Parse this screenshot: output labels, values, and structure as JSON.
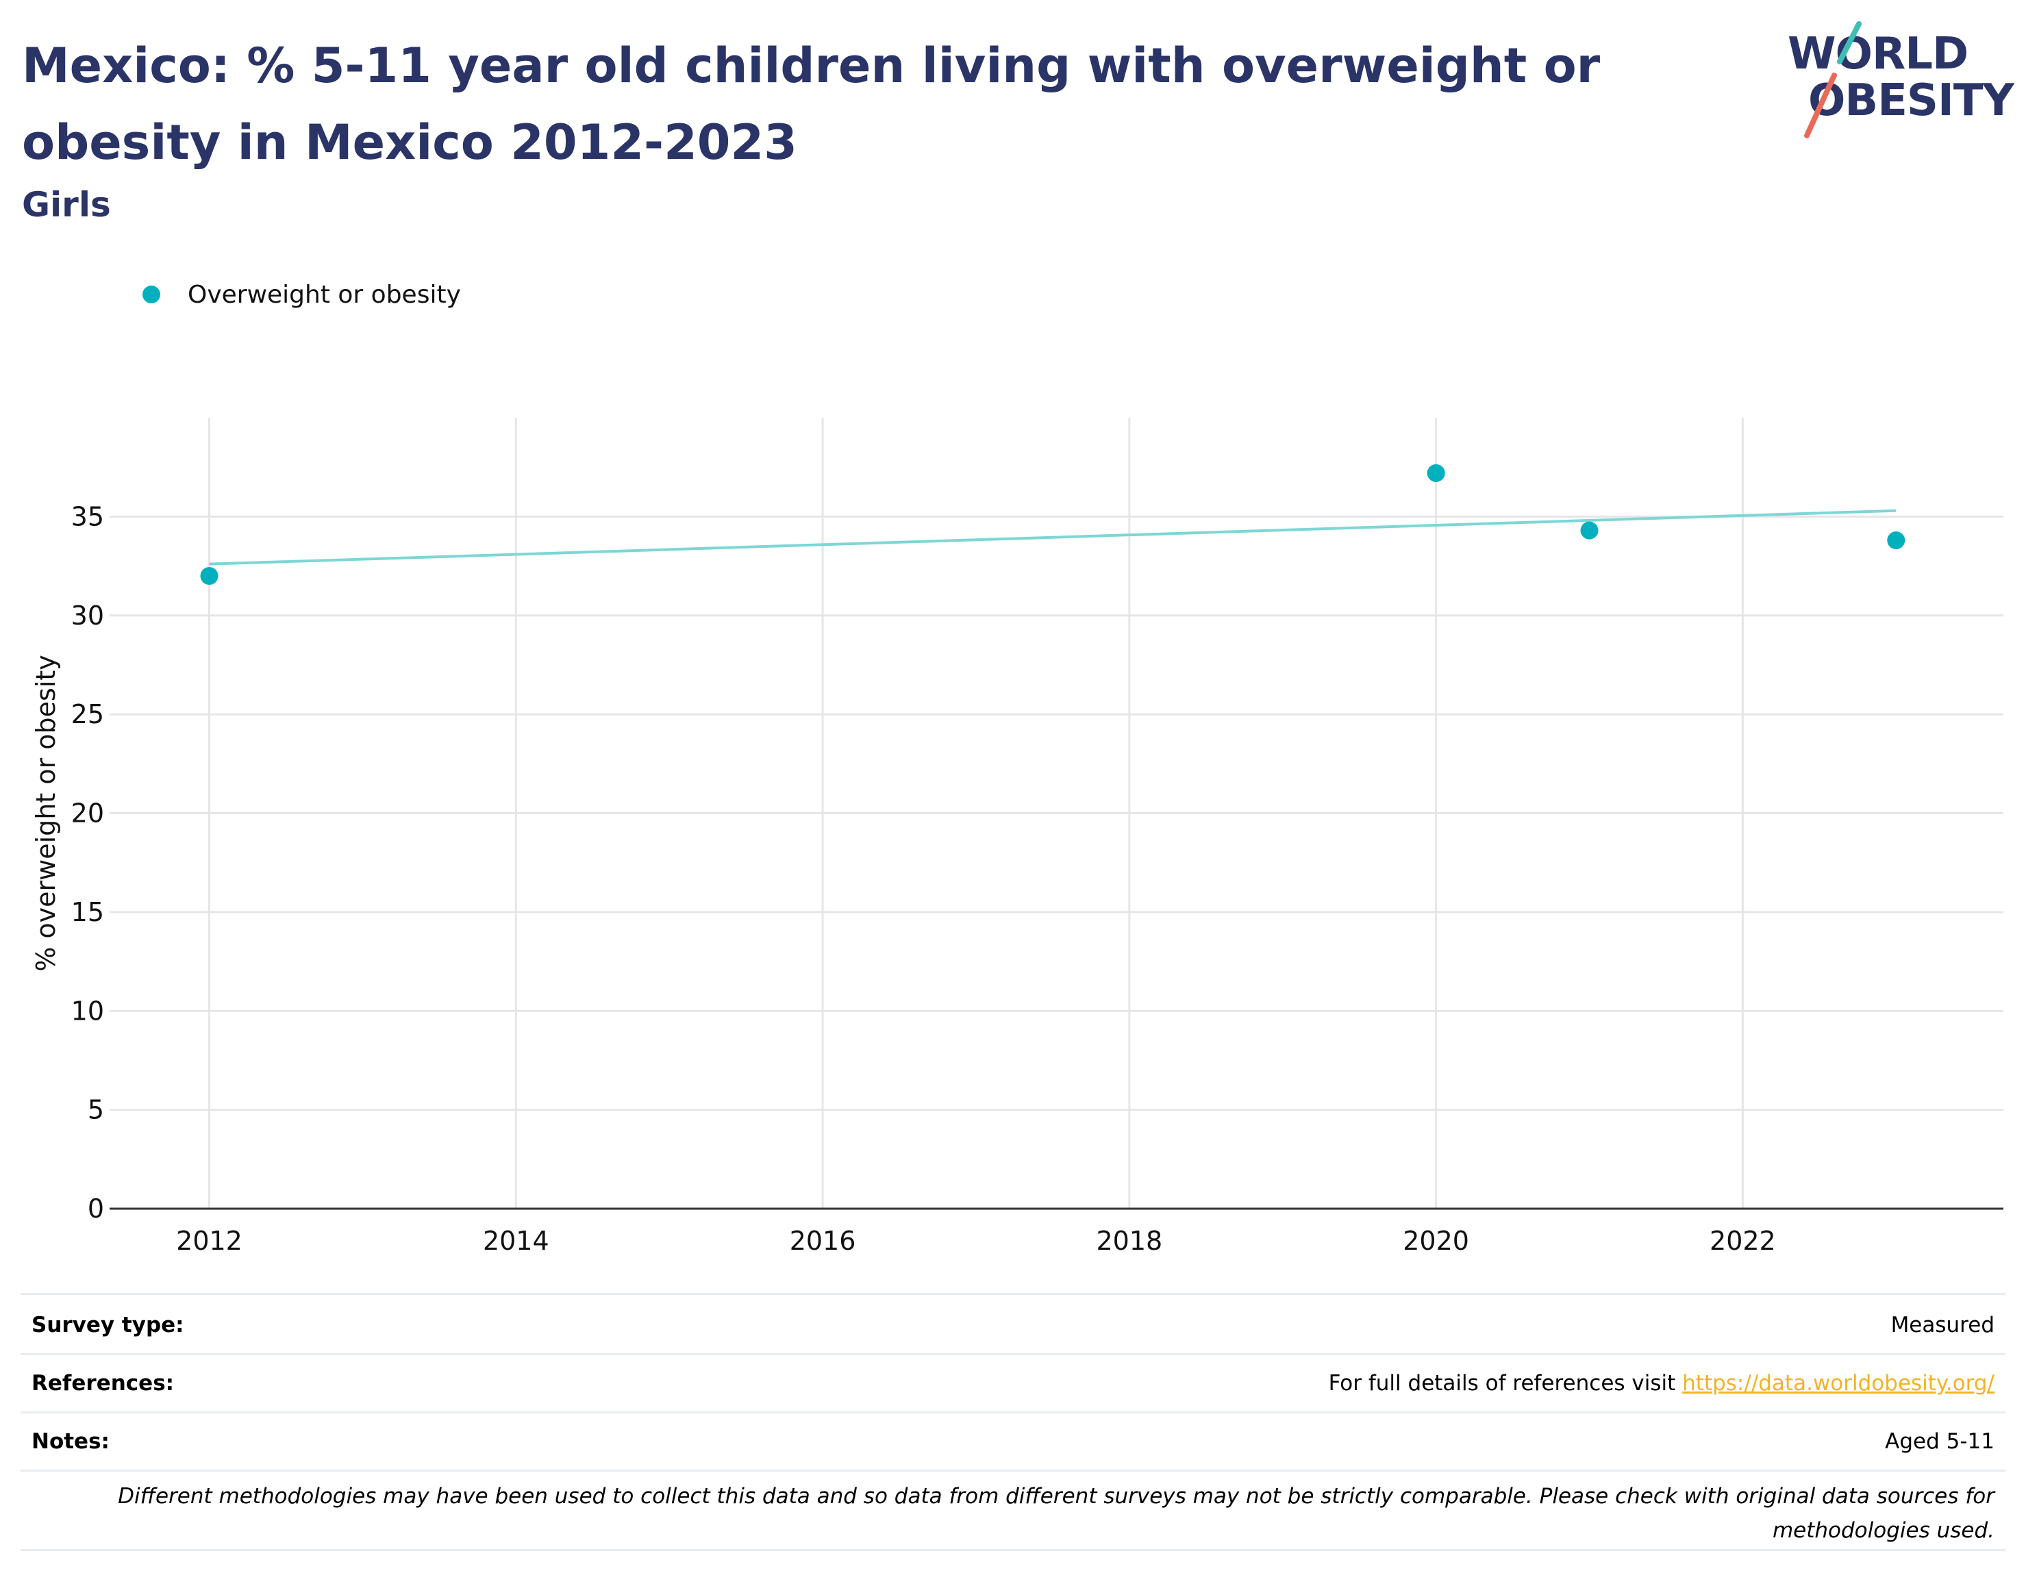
{
  "header": {
    "title": "Mexico: % 5-11 year old children living with overweight or obesity in Mexico 2012-2023",
    "subtitle": "Girls"
  },
  "logo": {
    "line1": "WORLD",
    "line2": "OBESITY",
    "accent_teal": "#3ebeb4",
    "accent_coral": "#ea6a5a"
  },
  "colors": {
    "title": "#2b3467",
    "series": "#00b0bd",
    "trend": "#7dd6d6",
    "grid": "#e6e6ea",
    "link": "#f2b324"
  },
  "chart_data": {
    "type": "scatter",
    "title": "Mexico: % 5-11 year old children living with overweight or obesity in Mexico 2012-2023",
    "subtitle": "Girls",
    "xlabel": "",
    "ylabel": "% overweight or obesity",
    "xlim": [
      2011.35,
      2023.7
    ],
    "ylim": [
      0,
      40
    ],
    "x_ticks": [
      2012,
      2014,
      2016,
      2018,
      2020,
      2022
    ],
    "y_ticks": [
      0,
      5,
      10,
      15,
      20,
      25,
      30,
      35
    ],
    "grid": true,
    "legend_position": "top-left",
    "series": [
      {
        "name": "Overweight or obesity",
        "x": [
          2012,
          2020,
          2021,
          2023
        ],
        "y": [
          32.0,
          37.2,
          34.3,
          33.8
        ]
      }
    ],
    "trendline": {
      "x": [
        2012,
        2023
      ],
      "y": [
        32.6,
        35.3
      ]
    }
  },
  "meta": {
    "survey_type": {
      "label": "Survey type:",
      "value": "Measured"
    },
    "references": {
      "label": "References:",
      "value": "For full details of references visit ",
      "link": "https://data.worldobesity.org/"
    },
    "notes": {
      "label": "Notes:",
      "value": "Aged 5-11"
    },
    "disclaimer": "Different methodologies may have been used to collect this data and so data from different surveys may not be strictly comparable. Please check with original data sources for methodologies used."
  }
}
